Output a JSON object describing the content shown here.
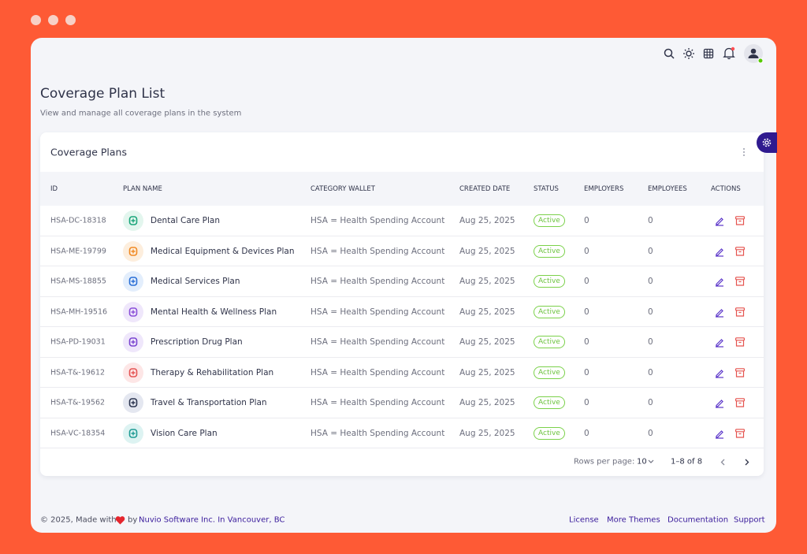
{
  "header": {
    "title": "Coverage Plan List",
    "subtitle": "View and manage all coverage plans in the system"
  },
  "card": {
    "title": "Coverage Plans"
  },
  "table": {
    "columns": [
      "ID",
      "PLAN NAME",
      "CATEGORY WALLET",
      "CREATED DATE",
      "STATUS",
      "EMPLOYERS",
      "EMPLOYEES",
      "ACTIONS"
    ],
    "rows": [
      [
        "HSA-DC-18318",
        "Dental Care Plan",
        "HSA = Health Spending Account",
        "Aug 25, 2025",
        "Active",
        0,
        0
      ],
      [
        "HSA-ME-19799",
        "Medical Equipment & Devices Plan",
        "HSA = Health Spending Account",
        "Aug 25, 2025",
        "Active",
        0,
        0
      ],
      [
        "HSA-MS-18855",
        "Medical Services Plan",
        "HSA = Health Spending Account",
        "Aug 25, 2025",
        "Active",
        0,
        0
      ],
      [
        "HSA-MH-19516",
        "Mental Health & Wellness Plan",
        "HSA = Health Spending Account",
        "Aug 25, 2025",
        "Active",
        0,
        0
      ],
      [
        "HSA-PD-19031",
        "Prescription Drug Plan",
        "HSA = Health Spending Account",
        "Aug 25, 2025",
        "Active",
        0,
        0
      ],
      [
        "HSA-T&-19612",
        "Therapy & Rehabilitation Plan",
        "HSA = Health Spending Account",
        "Aug 25, 2025",
        "Active",
        0,
        0
      ],
      [
        "HSA-T&-19562",
        "Travel & Transportation Plan",
        "HSA = Health Spending Account",
        "Aug 25, 2025",
        "Active",
        0,
        0
      ],
      [
        "HSA-VC-18354",
        "Vision Care Plan",
        "HSA = Health Spending Account",
        "Aug 25, 2025",
        "Active",
        0,
        0
      ]
    ]
  },
  "pagination": {
    "rows_per_page_label": "Rows per page:",
    "rows_per_page": 10,
    "range": "1–8 of 8"
  },
  "footer": {
    "copyright": "© 2025, Made with",
    "by": "by",
    "company": "Nuvio Software Inc. In Vancouver, BC",
    "links": [
      "License",
      "More Themes",
      "Documentation",
      "Support"
    ]
  }
}
